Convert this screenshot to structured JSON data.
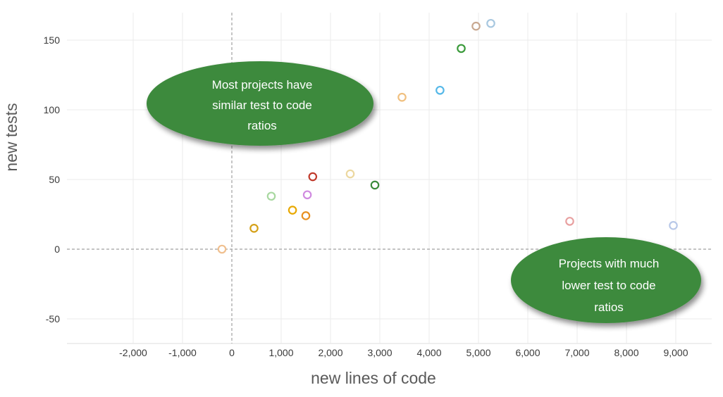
{
  "chart_data": {
    "type": "scatter",
    "xlabel": "new lines of code",
    "ylabel": "new tests",
    "xlim": [
      -3000,
      9500
    ],
    "ylim": [
      -65,
      170
    ],
    "xticks": [
      -2000,
      -1000,
      0,
      1000,
      2000,
      3000,
      4000,
      5000,
      6000,
      7000,
      8000,
      9000
    ],
    "xtick_labels": [
      "-2,000",
      "-1,000",
      "0",
      "1,000",
      "2,000",
      "3,000",
      "4,000",
      "5,000",
      "6,000",
      "7,000",
      "8,000",
      "9,000"
    ],
    "yticks": [
      -50,
      0,
      50,
      100,
      150
    ],
    "ytick_labels": [
      "-50",
      "0",
      "50",
      "100",
      "150"
    ],
    "grid": true,
    "legend": false,
    "points": [
      {
        "x": -200,
        "y": 0,
        "color": "#f0c090"
      },
      {
        "x": 450,
        "y": 15,
        "color": "#d4a017"
      },
      {
        "x": 800,
        "y": 38,
        "color": "#a8d8a0"
      },
      {
        "x": 1230,
        "y": 28,
        "color": "#e8a800"
      },
      {
        "x": 1500,
        "y": 24,
        "color": "#e89020"
      },
      {
        "x": 1530,
        "y": 39,
        "color": "#d08ae0"
      },
      {
        "x": 1640,
        "y": 52,
        "color": "#c03a2b"
      },
      {
        "x": 2400,
        "y": 54,
        "color": "#ecd8a0"
      },
      {
        "x": 2900,
        "y": 46,
        "color": "#3a8a3a"
      },
      {
        "x": 3450,
        "y": 109,
        "color": "#f0c080"
      },
      {
        "x": 4220,
        "y": 114,
        "color": "#55b8e8"
      },
      {
        "x": 4650,
        "y": 144,
        "color": "#3a9a3a"
      },
      {
        "x": 4950,
        "y": 160,
        "color": "#c8a890"
      },
      {
        "x": 5250,
        "y": 162,
        "color": "#a8c8e0"
      },
      {
        "x": 6850,
        "y": 20,
        "color": "#e8a0a0"
      },
      {
        "x": 8950,
        "y": 17,
        "color": "#b8c8e8"
      }
    ],
    "annotations": [
      {
        "lines": [
          "Most projects have",
          "similar test to code",
          "ratios"
        ]
      },
      {
        "lines": [
          "Projects with much",
          "lower test to code",
          "ratios"
        ]
      }
    ]
  },
  "colors": {
    "annotation_fill": "#3e8a3c",
    "grid": "#ebebeb",
    "zero_line": "#a0a0a0"
  }
}
